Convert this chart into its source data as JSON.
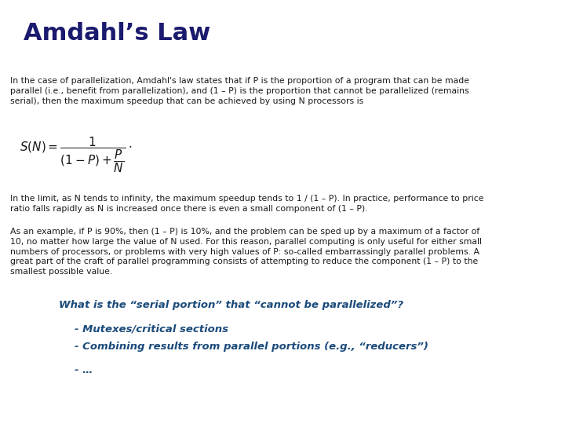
{
  "title": "Amdahl’s Law",
  "title_color": "#1a1a6e",
  "title_fontsize": 22,
  "background_color": "#ffffff",
  "body_text_color": "#1a1a1a",
  "body_fontsize": 7.8,
  "paragraph1": "In the case of parallelization, Amdahl's law states that if P is the proportion of a program that can be made\nparallel (i.e., benefit from parallelization), and (1 – P) is the proportion that cannot be parallelized (remains\nserial), then the maximum speedup that can be achieved by using N processors is",
  "formula_text": "$S(N) = \\dfrac{1}{(1-P)+\\dfrac{P}{N}}\\cdot$",
  "formula_fontsize": 11,
  "paragraph2": "In the limit, as N tends to infinity, the maximum speedup tends to 1 / (1 – P). In practice, performance to price\nratio falls rapidly as N is increased once there is even a small component of (1 – P).",
  "paragraph3": "As an example, if P is 90%, then (1 – P) is 10%, and the problem can be sped up by a maximum of a factor of\n10, no matter how large the value of N used. For this reason, parallel computing is only useful for either small\nnumbers of processors, or problems with very high values of P: so-called embarrassingly parallel problems. A\ngreat part of the craft of parallel programming consists of attempting to reduce the component (1 – P) to the\nsmallest possible value.",
  "question_text": "What is the “serial portion” that “cannot be parallelized”?",
  "bullet1": "- Mutexes/critical sections",
  "bullet2": "- Combining results from parallel portions (e.g., “reducers”)",
  "bullet3": "- …",
  "question_color": "#1a4a7a",
  "bullet_color": "#1a4a7a",
  "question_fontsize": 9.5,
  "bullet_fontsize": 9.5
}
